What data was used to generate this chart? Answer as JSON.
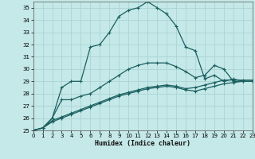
{
  "xlabel": "Humidex (Indice chaleur)",
  "xlim": [
    0,
    23
  ],
  "ylim": [
    25,
    35.5
  ],
  "xticks": [
    0,
    1,
    2,
    3,
    4,
    5,
    6,
    7,
    8,
    9,
    10,
    11,
    12,
    13,
    14,
    15,
    16,
    17,
    18,
    19,
    20,
    21,
    22,
    23
  ],
  "yticks": [
    25,
    26,
    27,
    28,
    29,
    30,
    31,
    32,
    33,
    34,
    35
  ],
  "background_color": "#c5e8e8",
  "grid_color": "#aad4d4",
  "line_color": "#1a5f5f",
  "series": [
    {
      "x": [
        0,
        1,
        2,
        3,
        4,
        5,
        6,
        7,
        8,
        9,
        10,
        11,
        12,
        13,
        14,
        15,
        16,
        17,
        18,
        19,
        20,
        21,
        22,
        23
      ],
      "y": [
        25.0,
        25.2,
        26.0,
        28.5,
        29.0,
        29.0,
        31.8,
        32.0,
        33.0,
        34.3,
        34.8,
        35.0,
        35.5,
        35.0,
        34.5,
        33.5,
        31.8,
        31.5,
        29.2,
        29.5,
        29.0,
        29.2,
        29.0,
        29.0
      ]
    },
    {
      "x": [
        0,
        1,
        2,
        3,
        4,
        5,
        6,
        7,
        8,
        9,
        10,
        11,
        12,
        13,
        14,
        15,
        16,
        17,
        18,
        19,
        20,
        21,
        22,
        23
      ],
      "y": [
        25.0,
        25.2,
        26.0,
        27.5,
        27.5,
        27.8,
        28.0,
        28.5,
        29.0,
        29.5,
        30.0,
        30.3,
        30.5,
        30.5,
        30.5,
        30.2,
        29.8,
        29.3,
        29.5,
        30.3,
        30.0,
        29.0,
        29.0,
        29.0
      ]
    },
    {
      "x": [
        0,
        1,
        2,
        3,
        4,
        5,
        6,
        7,
        8,
        9,
        10,
        11,
        12,
        13,
        14,
        15,
        16,
        17,
        18,
        19,
        20,
        21,
        22,
        23
      ],
      "y": [
        25.0,
        25.2,
        25.8,
        26.1,
        26.4,
        26.7,
        27.0,
        27.3,
        27.6,
        27.9,
        28.1,
        28.3,
        28.5,
        28.6,
        28.7,
        28.6,
        28.4,
        28.5,
        28.7,
        28.9,
        29.1,
        29.1,
        29.1,
        29.1
      ]
    },
    {
      "x": [
        0,
        1,
        2,
        3,
        4,
        5,
        6,
        7,
        8,
        9,
        10,
        11,
        12,
        13,
        14,
        15,
        16,
        17,
        18,
        19,
        20,
        21,
        22,
        23
      ],
      "y": [
        25.0,
        25.2,
        25.7,
        26.0,
        26.3,
        26.6,
        26.9,
        27.2,
        27.5,
        27.8,
        28.0,
        28.2,
        28.4,
        28.5,
        28.6,
        28.5,
        28.3,
        28.2,
        28.4,
        28.6,
        28.8,
        28.9,
        29.0,
        29.0
      ]
    }
  ]
}
